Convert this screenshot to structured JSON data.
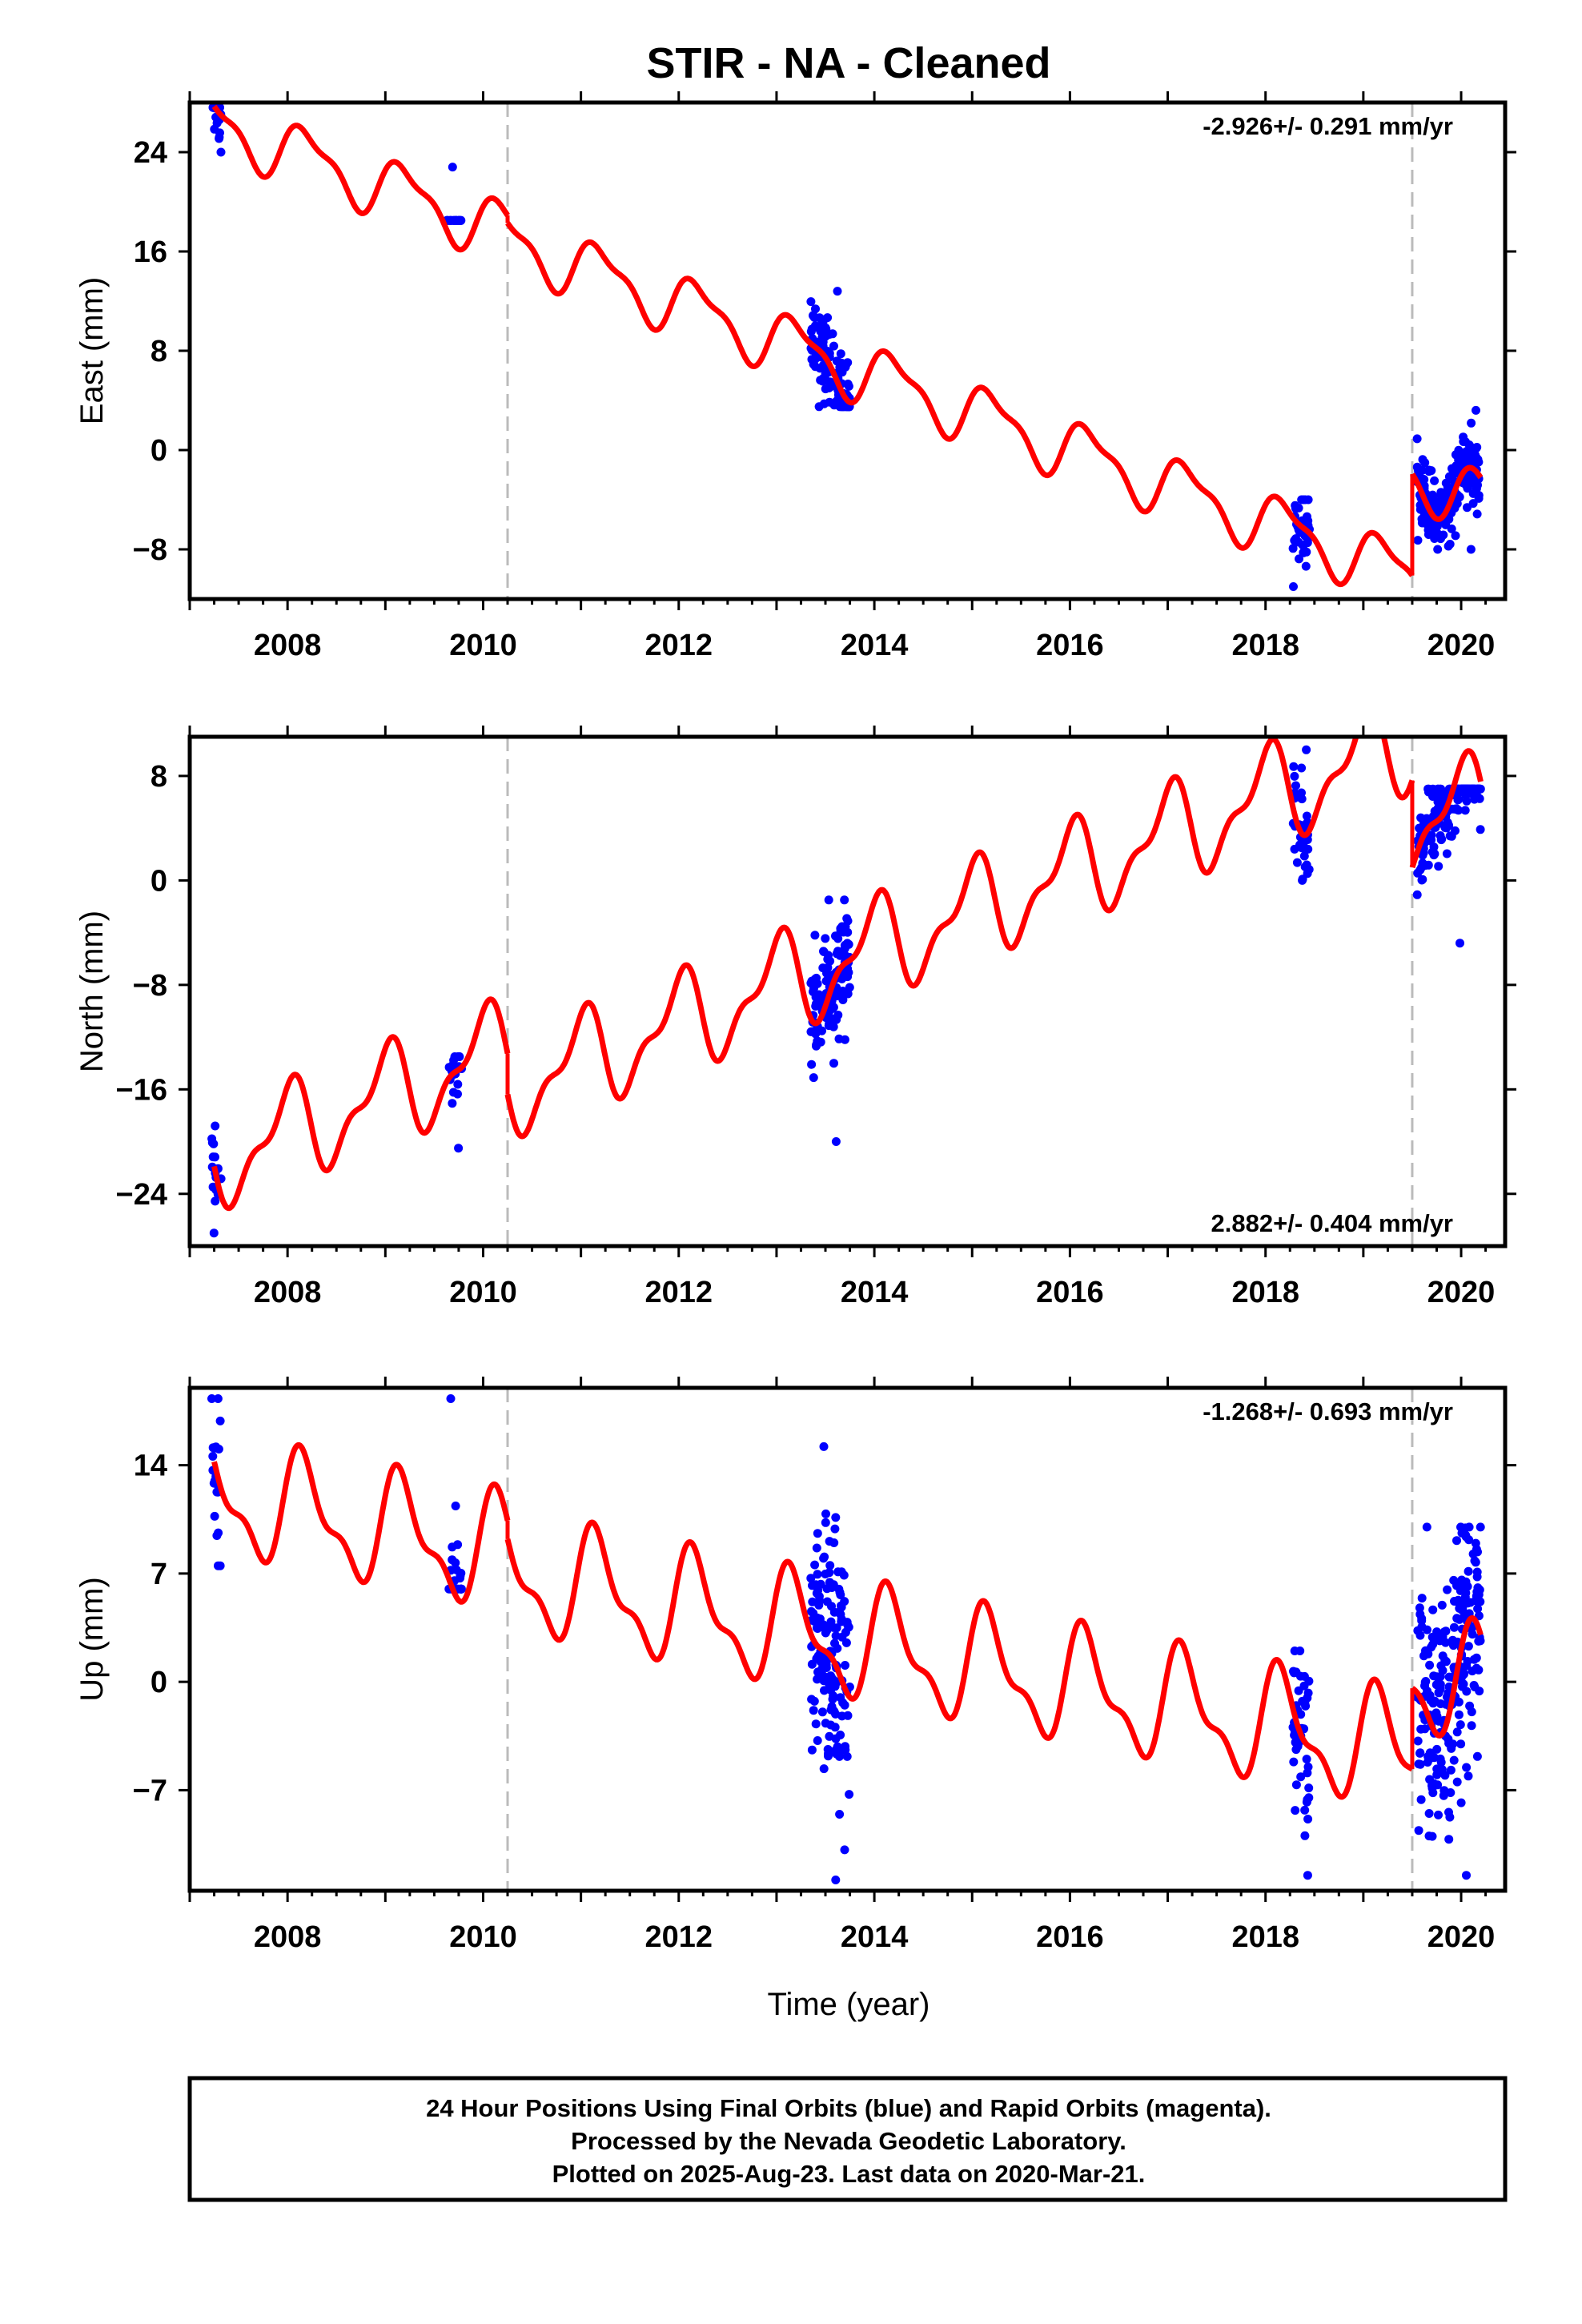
{
  "title": "STIR  - NA - Cleaned",
  "x_label": "Time (year)",
  "caption": [
    "24 Hour Positions Using Final Orbits (blue) and Rapid Orbits (magenta).",
    "Processed by the Nevada Geodetic Laboratory.",
    "Plotted on 2025-Aug-23. Last data on 2020-Mar-21."
  ],
  "colors": {
    "data": "#0000ff",
    "model": "#ff0000",
    "break": "#bbbbbb",
    "frame": "#000000"
  },
  "chart_data": [
    {
      "type": "scatter",
      "name": "east",
      "ylabel": "East (mm)",
      "rate": "-2.926+/- 0.291 mm/yr",
      "rate_position": "top-right",
      "xlim": [
        2007.0,
        2020.45
      ],
      "ylim": [
        -12,
        28
      ],
      "yticks": [
        24,
        16,
        8,
        0,
        -8
      ],
      "yticks_labels": [
        "24",
        "16",
        "8",
        "0",
        "−8"
      ],
      "xticks": [
        2008,
        2010,
        2012,
        2014,
        2016,
        2018,
        2020
      ],
      "xticks_labels": [
        "2008",
        "2010",
        "2012",
        "2014",
        "2016",
        "2018",
        "2020"
      ],
      "breaks": [
        2010.25,
        2019.5
      ],
      "trend": {
        "slope": -2.926,
        "annual_amp": 2.2,
        "semi_amp": 0.8,
        "annual_phase": 0.3,
        "semi_phase": 1.1
      },
      "segments": [
        {
          "t0": 2007.25,
          "t1": 2010.25,
          "offset": 26.3
        },
        {
          "t0": 2010.25,
          "t1": 2019.5,
          "offset": 16.9
        },
        {
          "t0": 2019.5,
          "t1": 2020.2,
          "offset": -2.0
        }
      ],
      "clusters": [
        {
          "t0": 2007.22,
          "t1": 2007.32,
          "n": 18,
          "spread": 1.3,
          "min": 24.0,
          "max": 27.6
        },
        {
          "t0": 2009.63,
          "t1": 2009.78,
          "n": 26,
          "spread": 1.2,
          "min": 18.5,
          "max": 22.8
        },
        {
          "t0": 2013.35,
          "t1": 2013.75,
          "n": 130,
          "spread": 1.6,
          "min": 3.5,
          "max": 12.8
        },
        {
          "t0": 2018.28,
          "t1": 2018.45,
          "n": 40,
          "spread": 1.6,
          "min": -11.0,
          "max": -4.0
        },
        {
          "t0": 2019.55,
          "t1": 2020.2,
          "n": 230,
          "spread": 1.3,
          "min": -8.0,
          "max": 3.2
        }
      ]
    },
    {
      "type": "scatter",
      "name": "north",
      "ylabel": "North (mm)",
      "rate": "2.882+/- 0.404 mm/yr",
      "rate_position": "bottom-right",
      "xlim": [
        2007.0,
        2020.45
      ],
      "ylim": [
        -28,
        11
      ],
      "yticks": [
        8,
        0,
        -8,
        -16,
        -24
      ],
      "yticks_labels": [
        "8",
        "0",
        "−8",
        "−16",
        "−24"
      ],
      "xticks": [
        2008,
        2010,
        2012,
        2014,
        2016,
        2018,
        2020
      ],
      "xticks_labels": [
        "2008",
        "2010",
        "2012",
        "2014",
        "2016",
        "2018",
        "2020"
      ],
      "breaks": [
        2010.25,
        2019.5
      ],
      "trend": {
        "slope": 2.882,
        "annual_amp": 3.3,
        "semi_amp": 1.5,
        "annual_phase": 1.6,
        "semi_phase": 0.2
      },
      "segments": [
        {
          "t0": 2007.25,
          "t1": 2010.25,
          "offset": -21.5
        },
        {
          "t0": 2010.25,
          "t1": 2019.5,
          "offset": -16.0
        },
        {
          "t0": 2019.5,
          "t1": 2020.2,
          "offset": 4.0
        }
      ],
      "clusters": [
        {
          "t0": 2007.22,
          "t1": 2007.32,
          "n": 16,
          "spread": 2.2,
          "min": -27.0,
          "max": -18.8
        },
        {
          "t0": 2009.65,
          "t1": 2009.78,
          "n": 20,
          "spread": 2.0,
          "min": -20.5,
          "max": -13.5
        },
        {
          "t0": 2013.35,
          "t1": 2013.75,
          "n": 130,
          "spread": 2.2,
          "min": -20.0,
          "max": -1.5
        },
        {
          "t0": 2018.28,
          "t1": 2018.45,
          "n": 38,
          "spread": 2.0,
          "min": 0.0,
          "max": 10.0
        },
        {
          "t0": 2019.55,
          "t1": 2020.2,
          "n": 230,
          "spread": 1.8,
          "min": -4.8,
          "max": 7.0
        }
      ]
    },
    {
      "type": "scatter",
      "name": "up",
      "ylabel": "Up (mm)",
      "rate": "-1.268+/- 0.693 mm/yr",
      "rate_position": "top-right",
      "xlim": [
        2007.0,
        2020.45
      ],
      "ylim": [
        -13.5,
        19
      ],
      "yticks": [
        14,
        7,
        0,
        -7
      ],
      "yticks_labels": [
        "14",
        "7",
        "0",
        "−7"
      ],
      "xticks": [
        2008,
        2010,
        2012,
        2014,
        2016,
        2018,
        2020
      ],
      "xticks_labels": [
        "2008",
        "2010",
        "2012",
        "2014",
        "2016",
        "2018",
        "2020"
      ],
      "breaks": [
        2010.25,
        2019.5
      ],
      "trend": {
        "slope": -1.268,
        "annual_amp": 3.3,
        "semi_amp": 1.4,
        "annual_phase": 0.5,
        "semi_phase": 0.5
      },
      "segments": [
        {
          "t0": 2007.25,
          "t1": 2010.25,
          "offset": 12.0
        },
        {
          "t0": 2010.25,
          "t1": 2019.5,
          "offset": 7.0
        },
        {
          "t0": 2019.5,
          "t1": 2020.2,
          "offset": 0.5
        }
      ],
      "clusters": [
        {
          "t0": 2007.22,
          "t1": 2007.32,
          "n": 20,
          "spread": 3.0,
          "min": 7.5,
          "max": 18.3
        },
        {
          "t0": 2009.65,
          "t1": 2009.78,
          "n": 28,
          "spread": 3.5,
          "min": 6.0,
          "max": 18.3
        },
        {
          "t0": 2013.35,
          "t1": 2013.75,
          "n": 160,
          "spread": 4.0,
          "min": -12.8,
          "max": 15.2
        },
        {
          "t0": 2018.28,
          "t1": 2018.45,
          "n": 45,
          "spread": 3.0,
          "min": -12.5,
          "max": 2.0
        },
        {
          "t0": 2019.55,
          "t1": 2020.2,
          "n": 240,
          "spread": 3.8,
          "min": -12.5,
          "max": 10.0
        }
      ]
    }
  ]
}
